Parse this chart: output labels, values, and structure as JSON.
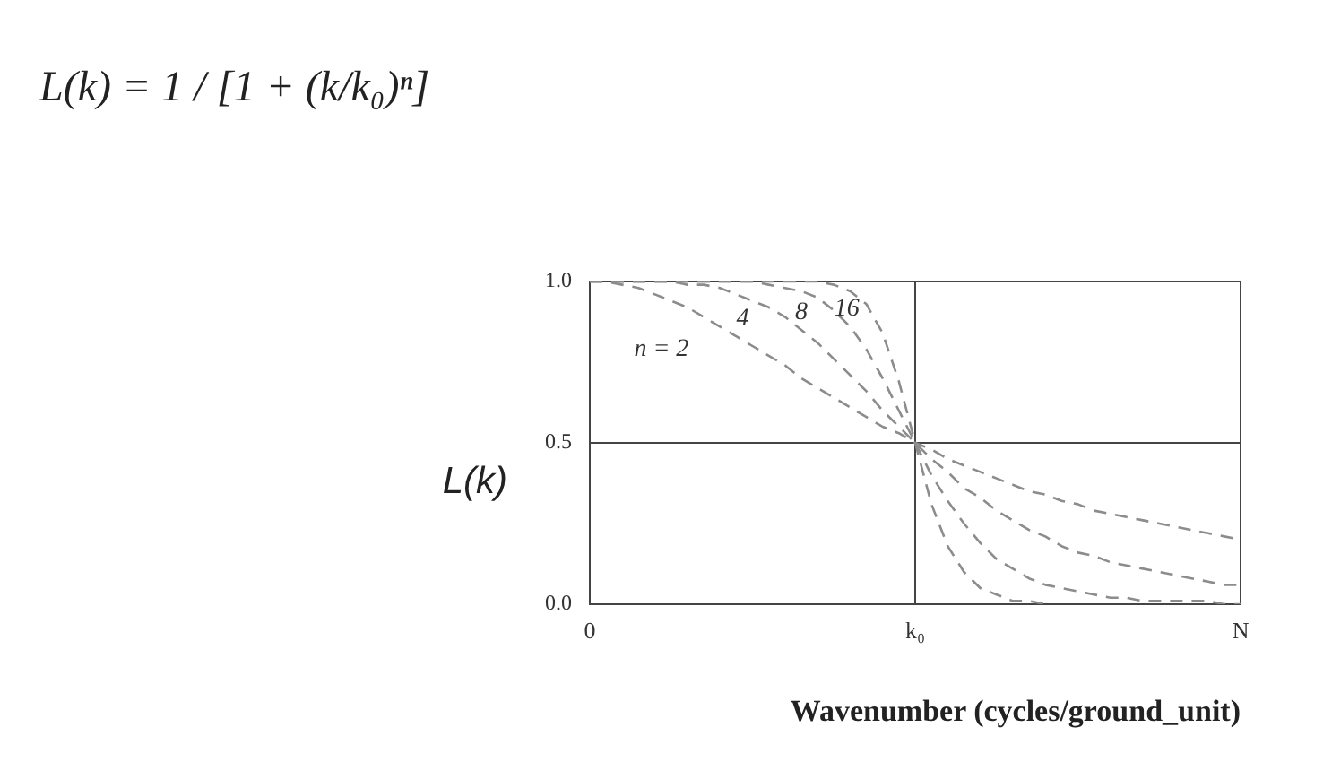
{
  "chart_data": {
    "type": "line",
    "xlabel": "Wavenumber (cycles/ground_unit)",
    "ylabel": "L(k)",
    "annotations": [
      "L(k) = 1 / [1 + (k/k₀)ⁿ]"
    ],
    "categories": [
      "0",
      null,
      null,
      null,
      null,
      null,
      null,
      null,
      null,
      null,
      null,
      null,
      null,
      null,
      null,
      null,
      null,
      null,
      null,
      null,
      "k₀",
      null,
      null,
      null,
      null,
      null,
      null,
      null,
      null,
      null,
      null,
      null,
      null,
      null,
      null,
      null,
      null,
      null,
      null,
      null,
      "N"
    ],
    "series": [
      {
        "name": "n = 2",
        "color": "#8c8c8c",
        "values": [
          1,
          1,
          0.99,
          0.98,
          0.96,
          0.94,
          0.92,
          0.89,
          0.86,
          0.83,
          0.8,
          0.77,
          0.74,
          0.7,
          0.67,
          0.64,
          0.61,
          0.58,
          0.55,
          0.53,
          0.5,
          0.48,
          0.45,
          0.43,
          0.41,
          0.39,
          0.37,
          0.35,
          0.34,
          0.32,
          0.31,
          0.29,
          0.28,
          0.27,
          0.26,
          0.25,
          0.24,
          0.23,
          0.22,
          0.21,
          0.2
        ]
      },
      {
        "name": "4",
        "color": "#8c8c8c",
        "values": [
          1,
          1,
          1,
          1,
          1,
          1,
          0.99,
          0.99,
          0.98,
          0.96,
          0.94,
          0.92,
          0.89,
          0.85,
          0.81,
          0.76,
          0.71,
          0.66,
          0.6,
          0.55,
          0.5,
          0.45,
          0.41,
          0.36,
          0.33,
          0.29,
          0.26,
          0.23,
          0.21,
          0.18,
          0.16,
          0.15,
          0.13,
          0.12,
          0.11,
          0.1,
          0.09,
          0.08,
          0.07,
          0.06,
          0.06
        ]
      },
      {
        "name": "8",
        "color": "#8c8c8c",
        "values": [
          1,
          1,
          1,
          1,
          1,
          1,
          1,
          1,
          1,
          1,
          1,
          0.99,
          0.98,
          0.97,
          0.95,
          0.91,
          0.86,
          0.79,
          0.7,
          0.6,
          0.5,
          0.4,
          0.32,
          0.25,
          0.19,
          0.14,
          0.11,
          0.08,
          0.06,
          0.05,
          0.04,
          0.03,
          0.02,
          0.02,
          0.01,
          0.01,
          0.01,
          0.01,
          0.01,
          0,
          0
        ]
      },
      {
        "name": "16",
        "color": "#8c8c8c",
        "values": [
          1,
          1,
          1,
          1,
          1,
          1,
          1,
          1,
          1,
          1,
          1,
          1,
          1,
          1,
          1,
          0.99,
          0.97,
          0.93,
          0.84,
          0.69,
          0.5,
          0.31,
          0.18,
          0.1,
          0.05,
          0.03,
          0.01,
          0.01,
          0,
          null,
          null,
          null,
          null,
          null,
          null,
          null,
          null,
          null,
          null,
          null,
          null
        ]
      }
    ],
    "ylim": [
      0,
      1
    ],
    "yticks": [
      {
        "value": 0,
        "label": "0.0"
      },
      0.5,
      {
        "value": 1,
        "label": "1.0"
      }
    ],
    "grid": true,
    "marker": "none",
    "line_style": "dashed"
  }
}
